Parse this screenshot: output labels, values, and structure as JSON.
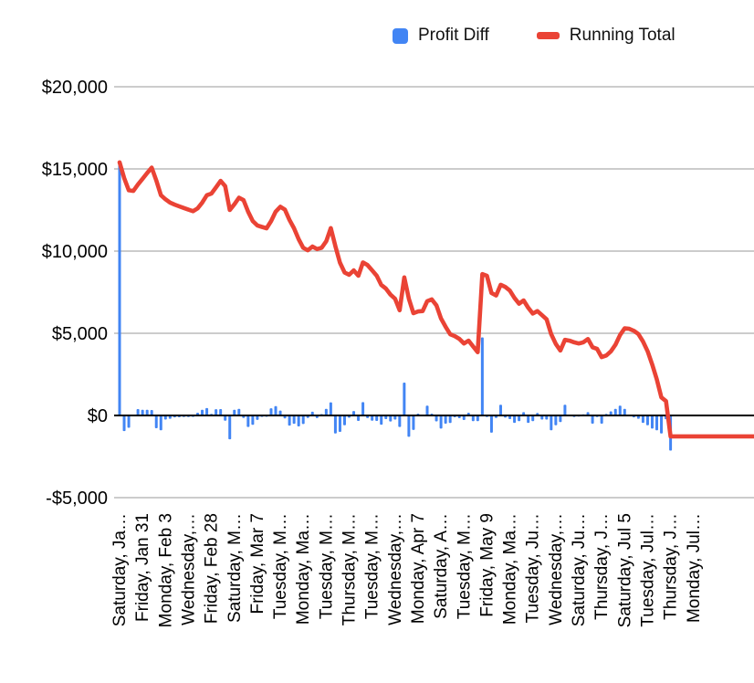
{
  "legend": {
    "items": [
      {
        "label": "Profit Diff",
        "color": "#4285F4",
        "swatch": "square"
      },
      {
        "label": "Running Total",
        "color": "#EA4335",
        "swatch": "dash"
      }
    ]
  },
  "chart_data": {
    "type": "combo",
    "title": "",
    "xlabel": "",
    "ylabel": "",
    "grid": true,
    "legend_position": "top",
    "ylim": [
      -5000,
      20000
    ],
    "y_ticks": [
      "$20,000",
      "$15,000",
      "$10,000",
      "$5,000",
      "$0",
      "-$5,000"
    ],
    "y_tick_values": [
      20000,
      15000,
      10000,
      5000,
      0,
      -5000
    ],
    "x_tick_labels": [
      "Saturday, Ja…",
      "Friday, Jan 31",
      "Monday, Feb 3",
      "Wednesday,…",
      "Friday, Feb 28",
      "Saturday, M…",
      "Friday, Mar 7",
      "Tuesday, M…",
      "Monday, Ma…",
      "Tuesday, M…",
      "Thursday, M…",
      "Tuesday, M…",
      "Wednesday,…",
      "Monday, Apr 7",
      "Saturday, A…",
      "Tuesday, M…",
      "Friday, May 9",
      "Monday, Ma…",
      "Tuesday, Ju…",
      "Wednesday,…",
      "Saturday, Ju…",
      "Thursday, J…",
      "Saturday, Jul 5",
      "Tuesday, Jul…",
      "Thursday, J…",
      "Monday, Jul…"
    ],
    "x_tick_every": 5,
    "n_points": 138,
    "series": [
      {
        "name": "Profit Diff",
        "type": "bar",
        "color": "#4285F4",
        "values": [
          15400,
          -950,
          -750,
          -40,
          390,
          350,
          350,
          330,
          -780,
          -900,
          -250,
          -200,
          -120,
          -110,
          -100,
          -100,
          -90,
          170,
          350,
          450,
          100,
          380,
          390,
          -320,
          -1450,
          350,
          400,
          -150,
          -700,
          -570,
          -270,
          -90,
          -80,
          440,
          570,
          300,
          -180,
          -620,
          -510,
          -670,
          -520,
          -150,
          230,
          -160,
          80,
          400,
          800,
          -1100,
          -1000,
          -600,
          -140,
          270,
          -330,
          810,
          -160,
          -320,
          -330,
          -560,
          -220,
          -370,
          -250,
          -700,
          2000,
          -1300,
          -880,
          110,
          20,
          600,
          110,
          -360,
          -800,
          -500,
          -460,
          -110,
          -170,
          -280,
          170,
          -350,
          -350,
          4750,
          -100,
          -1050,
          -150,
          650,
          -130,
          -220,
          -450,
          -350,
          200,
          -450,
          -350,
          150,
          -250,
          -250,
          -900,
          -600,
          -400,
          650,
          -50,
          -100,
          -70,
          70,
          200,
          -500,
          -100,
          -500,
          100,
          250,
          400,
          600,
          400,
          -30,
          -120,
          -200,
          -450,
          -600,
          -800,
          -900,
          -1100,
          -230,
          -2140,
          0,
          0,
          0,
          0,
          0,
          0,
          0,
          0,
          0,
          0,
          0,
          0,
          0,
          0,
          0,
          0,
          0
        ]
      },
      {
        "name": "Running Total",
        "type": "line",
        "color": "#EA4335",
        "values": [
          15400,
          14450,
          13700,
          13660,
          14050,
          14400,
          14750,
          15080,
          14300,
          13400,
          13150,
          12950,
          12830,
          12720,
          12620,
          12520,
          12430,
          12600,
          12950,
          13400,
          13500,
          13880,
          14270,
          13950,
          12500,
          12850,
          13250,
          13100,
          12400,
          11830,
          11560,
          11470,
          11390,
          11830,
          12400,
          12700,
          12520,
          11900,
          11390,
          10720,
          10200,
          10050,
          10280,
          10120,
          10200,
          10600,
          11400,
          10300,
          9300,
          8700,
          8560,
          8830,
          8500,
          9310,
          9150,
          8830,
          8500,
          7940,
          7720,
          7350,
          7100,
          6400,
          8400,
          7100,
          6220,
          6330,
          6350,
          6950,
          7060,
          6700,
          5900,
          5400,
          4940,
          4830,
          4660,
          4380,
          4550,
          4200,
          3850,
          8600,
          8500,
          7450,
          7300,
          7950,
          7820,
          7600,
          7150,
          6800,
          7000,
          6550,
          6200,
          6350,
          6100,
          5850,
          4950,
          4350,
          3950,
          4600,
          4550,
          4450,
          4380,
          4450,
          4650,
          4150,
          4050,
          3550,
          3650,
          3900,
          4300,
          4900,
          5300,
          5270,
          5150,
          4950,
          4500,
          3900,
          3100,
          2200,
          1100,
          870,
          -1270,
          -1270,
          -1270,
          -1270,
          -1270,
          -1270,
          -1270,
          -1270,
          -1270,
          -1270,
          -1270,
          -1270,
          -1270,
          -1270,
          -1270,
          -1270,
          -1270,
          -1270
        ]
      }
    ]
  }
}
